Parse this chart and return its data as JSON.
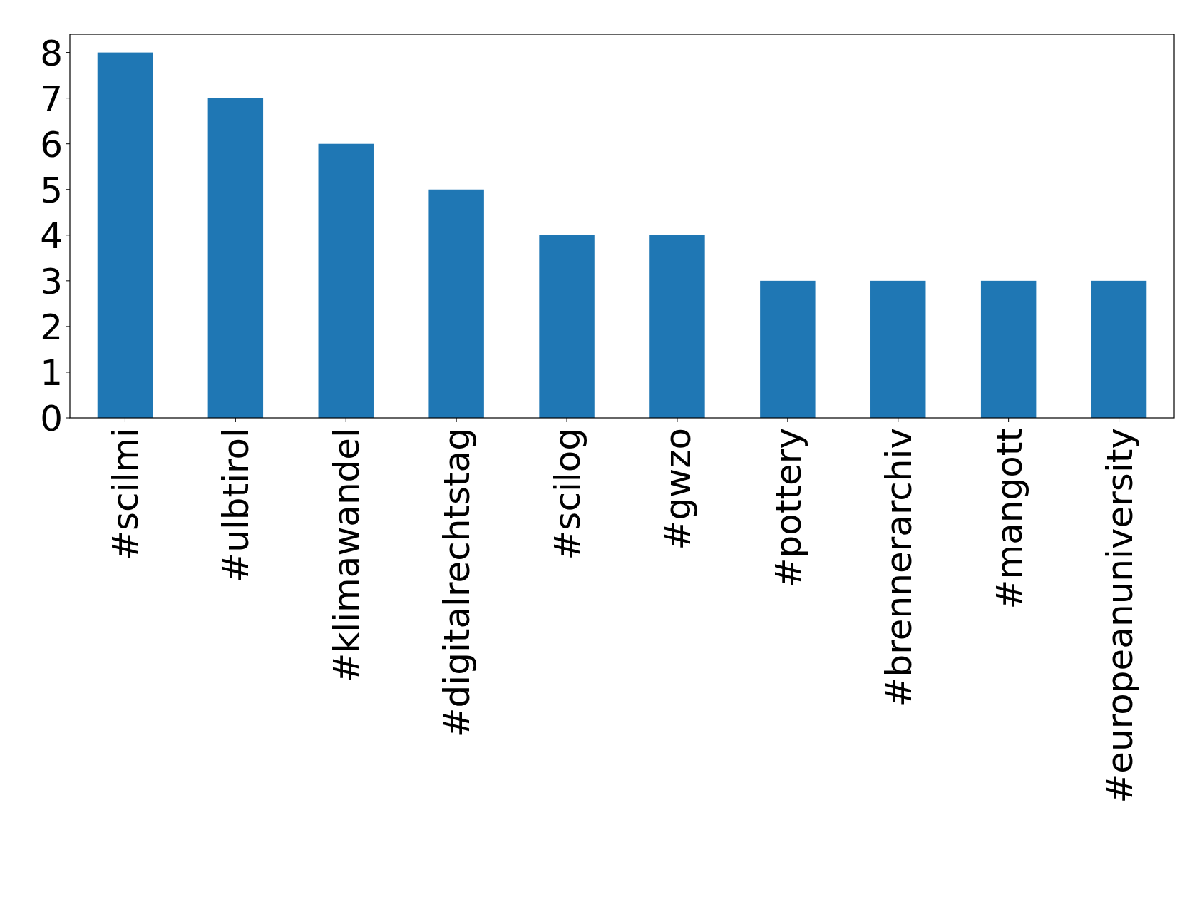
{
  "chart_data": {
    "type": "bar",
    "categories": [
      "#scilmi",
      "#ulbtirol",
      "#klimawandel",
      "#digitalrechtstag",
      "#scilog",
      "#gwzo",
      "#pottery",
      "#brennerarchiv",
      "#mangott",
      "#europeanuniversity"
    ],
    "values": [
      8,
      7,
      6,
      5,
      4,
      4,
      3,
      3,
      3,
      3
    ],
    "color": "#1f77b4",
    "ylim": [
      0,
      8.4
    ],
    "yticks": [
      0,
      1,
      2,
      3,
      4,
      5,
      6,
      7,
      8
    ],
    "grid": false
  }
}
